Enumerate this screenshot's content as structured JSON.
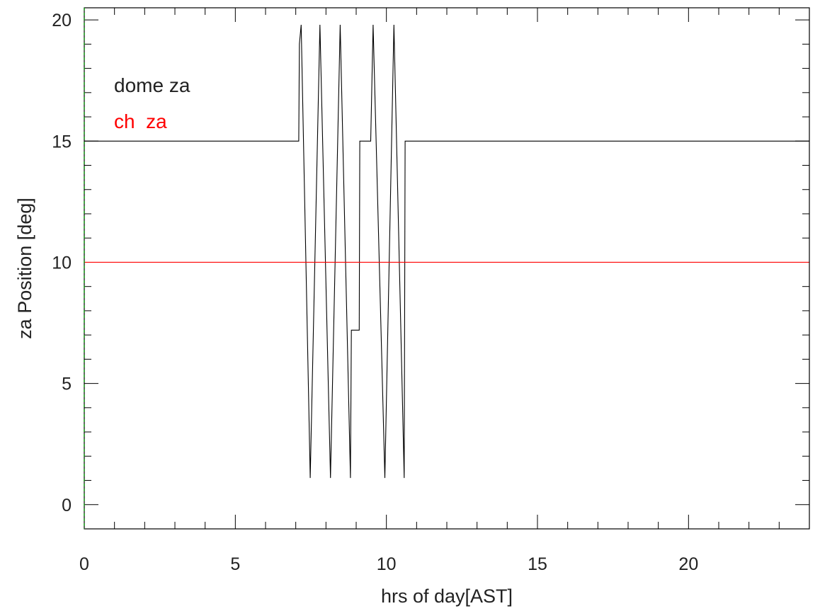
{
  "chart_data": {
    "type": "line",
    "xlabel": "hrs of day[AST]",
    "ylabel": "za Position [deg]",
    "xlim": [
      0,
      24
    ],
    "ylim": [
      -1,
      20.5
    ],
    "x_ticks": [
      0,
      5,
      10,
      15,
      20
    ],
    "y_ticks": [
      0,
      5,
      10,
      15,
      20
    ],
    "x_minor_step": 1,
    "y_minor_step": 1,
    "grid": false,
    "legend": {
      "placement": "top-left"
    },
    "series": [
      {
        "name": "dome za",
        "color": "#000000",
        "x": [
          0,
          7.1,
          7.12,
          7.18,
          7.48,
          7.8,
          8.15,
          8.47,
          8.81,
          8.84,
          9.09,
          9.1,
          9.12,
          9.16,
          9.45,
          9.48,
          9.56,
          9.95,
          10.25,
          10.59,
          10.62,
          24
        ],
        "y": [
          15,
          15,
          19.0,
          19.8,
          1.1,
          19.8,
          1.1,
          19.8,
          1.1,
          7.2,
          7.2,
          7.2,
          15.0,
          15.0,
          15.0,
          15.0,
          19.8,
          1.1,
          19.8,
          1.1,
          15,
          15
        ]
      },
      {
        "name": "ch  za",
        "color": "#ff0000",
        "x": [
          0,
          24
        ],
        "y": [
          10,
          10
        ]
      }
    ]
  }
}
